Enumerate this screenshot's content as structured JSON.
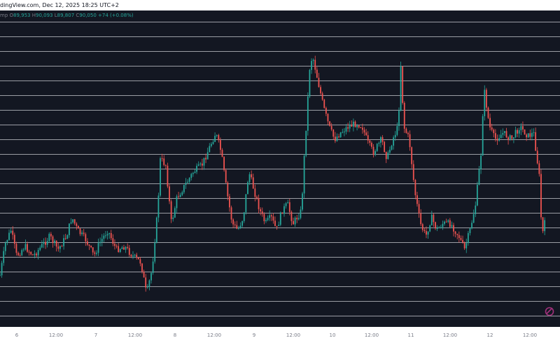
{
  "header": {
    "source_text": "dingView.com, Dec 12, 2025 18:25 UTC+2"
  },
  "ohlc": {
    "symbol": "mp",
    "o_label": "O",
    "o": "89,953",
    "h_label": "H",
    "h": "90,093",
    "l_label": "L",
    "l": "89,807",
    "c_label": "C",
    "c": "90,050",
    "change": "+74 (+0.08%)"
  },
  "colors": {
    "background": "#131722",
    "grid": "#c8cad0",
    "up": "#26a69a",
    "down": "#ef5350",
    "axis_text": "#787b86",
    "axis_bg": "#ffffff",
    "badge": "#a0307a"
  },
  "chart_data": {
    "type": "line",
    "title": "",
    "xlabel": "",
    "ylabel": "",
    "x_tick_labels": [
      "6",
      "12:00",
      "7",
      "12:00",
      "8",
      "12:00",
      "9",
      "12:00",
      "10",
      "12:00",
      "11",
      "12:00",
      "12",
      "12:00"
    ],
    "grid": true,
    "series": [
      {
        "values": [
          [
            0,
            0.24
          ],
          [
            0.01,
            0.34
          ],
          [
            0.02,
            0.38
          ],
          [
            0.03,
            0.3
          ],
          [
            0.045,
            0.33
          ],
          [
            0.06,
            0.3
          ],
          [
            0.075,
            0.33
          ],
          [
            0.09,
            0.36
          ],
          [
            0.105,
            0.32
          ],
          [
            0.12,
            0.36
          ],
          [
            0.13,
            0.42
          ],
          [
            0.14,
            0.38
          ],
          [
            0.155,
            0.35
          ],
          [
            0.17,
            0.3
          ],
          [
            0.18,
            0.34
          ],
          [
            0.195,
            0.38
          ],
          [
            0.21,
            0.32
          ],
          [
            0.225,
            0.33
          ],
          [
            0.24,
            0.3
          ],
          [
            0.255,
            0.28
          ],
          [
            0.265,
            0.18
          ],
          [
            0.275,
            0.26
          ],
          [
            0.285,
            0.44
          ],
          [
            0.29,
            0.6
          ],
          [
            0.3,
            0.58
          ],
          [
            0.31,
            0.4
          ],
          [
            0.32,
            0.48
          ],
          [
            0.335,
            0.52
          ],
          [
            0.35,
            0.56
          ],
          [
            0.365,
            0.58
          ],
          [
            0.38,
            0.64
          ],
          [
            0.39,
            0.68
          ],
          [
            0.4,
            0.62
          ],
          [
            0.41,
            0.5
          ],
          [
            0.42,
            0.4
          ],
          [
            0.43,
            0.38
          ],
          [
            0.44,
            0.42
          ],
          [
            0.45,
            0.56
          ],
          [
            0.46,
            0.5
          ],
          [
            0.47,
            0.44
          ],
          [
            0.48,
            0.4
          ],
          [
            0.49,
            0.42
          ],
          [
            0.5,
            0.38
          ],
          [
            0.51,
            0.44
          ],
          [
            0.52,
            0.46
          ],
          [
            0.53,
            0.4
          ],
          [
            0.545,
            0.44
          ],
          [
            0.55,
            0.6
          ],
          [
            0.56,
            0.88
          ],
          [
            0.565,
            0.92
          ],
          [
            0.575,
            0.84
          ],
          [
            0.585,
            0.76
          ],
          [
            0.595,
            0.7
          ],
          [
            0.605,
            0.66
          ],
          [
            0.615,
            0.68
          ],
          [
            0.63,
            0.7
          ],
          [
            0.645,
            0.71
          ],
          [
            0.655,
            0.7
          ],
          [
            0.665,
            0.65
          ],
          [
            0.675,
            0.62
          ],
          [
            0.69,
            0.66
          ],
          [
            0.7,
            0.6
          ],
          [
            0.71,
            0.66
          ],
          [
            0.72,
            0.7
          ],
          [
            0.725,
            0.9
          ],
          [
            0.73,
            0.7
          ],
          [
            0.74,
            0.66
          ],
          [
            0.75,
            0.5
          ],
          [
            0.76,
            0.4
          ],
          [
            0.77,
            0.36
          ],
          [
            0.78,
            0.42
          ],
          [
            0.79,
            0.38
          ],
          [
            0.8,
            0.4
          ],
          [
            0.815,
            0.4
          ],
          [
            0.83,
            0.36
          ],
          [
            0.84,
            0.32
          ],
          [
            0.85,
            0.38
          ],
          [
            0.86,
            0.46
          ],
          [
            0.87,
            0.62
          ],
          [
            0.875,
            0.82
          ],
          [
            0.885,
            0.7
          ],
          [
            0.895,
            0.66
          ],
          [
            0.91,
            0.68
          ],
          [
            0.925,
            0.66
          ],
          [
            0.94,
            0.7
          ],
          [
            0.955,
            0.67
          ],
          [
            0.965,
            0.68
          ],
          [
            0.975,
            0.55
          ],
          [
            0.98,
            0.36
          ],
          [
            0.985,
            0.4
          ]
        ]
      }
    ]
  }
}
